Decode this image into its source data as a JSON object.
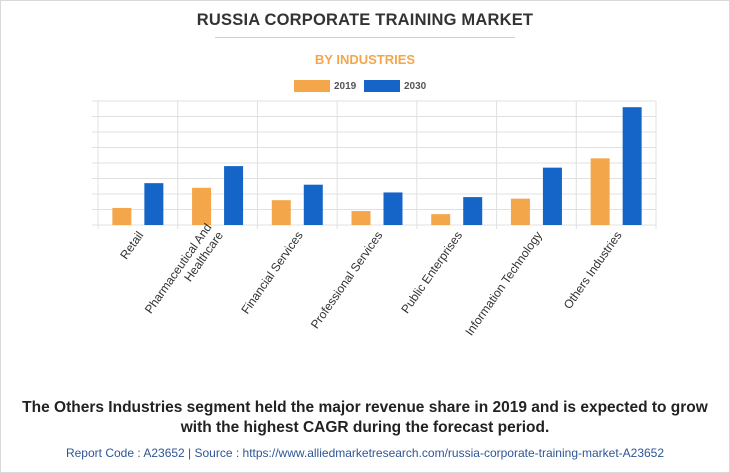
{
  "header": {
    "title": "RUSSIA CORPORATE TRAINING MARKET",
    "subtitle": "BY INDUSTRIES"
  },
  "colors": {
    "series_2019": "#f4a64a",
    "series_2030": "#1565c8",
    "subtitle": "#f4a64a",
    "grid": "#e0e0e0"
  },
  "chart_data": {
    "type": "bar",
    "categories": [
      "Retail",
      "Pharmaceutical And Healthcare",
      "Financial Services",
      "Professional Services",
      "Public Enterprises",
      "Information Technology",
      "Others Industries"
    ],
    "category_lines": [
      [
        "Retail"
      ],
      [
        "Pharmaceutical And",
        "Healthcare"
      ],
      [
        "Financial Services"
      ],
      [
        "Professional Services"
      ],
      [
        "Public Enterprises"
      ],
      [
        "Information Technology"
      ],
      [
        "Others Industries"
      ]
    ],
    "series": [
      {
        "name": "2019",
        "values": [
          1.1,
          2.4,
          1.6,
          0.9,
          0.7,
          1.7,
          4.3
        ]
      },
      {
        "name": "2030",
        "values": [
          2.7,
          3.8,
          2.6,
          2.1,
          1.8,
          3.7,
          7.6
        ]
      }
    ],
    "ylim": [
      0,
      8
    ],
    "ytick_count": 8,
    "grid": true,
    "legend": "top-center",
    "xlabel": "",
    "ylabel": ""
  },
  "footer": {
    "summary_line1": "The Others Industries segment held the major revenue share in 2019 and is expected to grow",
    "summary_line2": "with the highest CAGR during the forecast period.",
    "source": "Report Code : A23652  |  Source : https://www.alliedmarketresearch.com/russia-corporate-training-market-A23652"
  }
}
